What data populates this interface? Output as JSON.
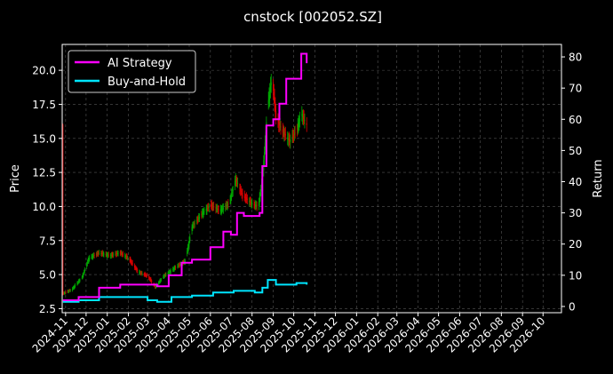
{
  "chart_data": {
    "type": "line",
    "title": "cnstock [002052.SZ]",
    "ylabel_left": "Price",
    "ylabel_right": "Return",
    "grid": true,
    "legend_placement": "top-left",
    "colors": {
      "background": "#000000",
      "text": "#ffffff",
      "grid": "#555555",
      "up_candle": "#00aa00",
      "down_candle": "#dd0000",
      "ai_strategy": "#ff00ff",
      "buy_and_hold": "#00e5ff"
    },
    "x_ticks": [
      "2024-11",
      "2024-12",
      "2025-01",
      "2025-02",
      "2025-03",
      "2025-04",
      "2025-05",
      "2025-06",
      "2025-07",
      "2025-08",
      "2025-09",
      "2025-10",
      "2025-11",
      "2025-12",
      "2026-01",
      "2026-02",
      "2026-03",
      "2026-04",
      "2026-05",
      "2026-06",
      "2026-07",
      "2026-08",
      "2026-09",
      "2026-10"
    ],
    "xlim": [
      "2024-10-27",
      "2026-10-28"
    ],
    "ylim_left": [
      2.2,
      21.9
    ],
    "yticks_left": [
      "2.5",
      "5.0",
      "7.5",
      "10.0",
      "12.5",
      "15.0",
      "17.5",
      "20.0"
    ],
    "ylim_right": [
      -2,
      84
    ],
    "yticks_right": [
      "0",
      "10",
      "20",
      "30",
      "40",
      "50",
      "60",
      "70",
      "80"
    ],
    "price": [
      {
        "x": "2024-10-28",
        "y": 3.6
      },
      {
        "x": "2024-11-10",
        "y": 3.9
      },
      {
        "x": "2024-11-25",
        "y": 4.8
      },
      {
        "x": "2024-12-05",
        "y": 6.2
      },
      {
        "x": "2024-12-20",
        "y": 6.6
      },
      {
        "x": "2025-01-05",
        "y": 6.4
      },
      {
        "x": "2025-01-20",
        "y": 6.6
      },
      {
        "x": "2025-02-01",
        "y": 6.2
      },
      {
        "x": "2025-02-15",
        "y": 5.2
      },
      {
        "x": "2025-03-01",
        "y": 4.9
      },
      {
        "x": "2025-03-12",
        "y": 4.1
      },
      {
        "x": "2025-03-25",
        "y": 4.9
      },
      {
        "x": "2025-04-10",
        "y": 5.5
      },
      {
        "x": "2025-04-25",
        "y": 6.0
      },
      {
        "x": "2025-05-05",
        "y": 8.5
      },
      {
        "x": "2025-05-20",
        "y": 9.5
      },
      {
        "x": "2025-06-01",
        "y": 10.1
      },
      {
        "x": "2025-06-15",
        "y": 9.7
      },
      {
        "x": "2025-06-28",
        "y": 10.2
      },
      {
        "x": "2025-07-08",
        "y": 12.0
      },
      {
        "x": "2025-07-18",
        "y": 10.8
      },
      {
        "x": "2025-08-01",
        "y": 10.2
      },
      {
        "x": "2025-08-10",
        "y": 10.0
      },
      {
        "x": "2025-08-16",
        "y": 12.0
      },
      {
        "x": "2025-08-24",
        "y": 17.5
      },
      {
        "x": "2025-08-30",
        "y": 19.5
      },
      {
        "x": "2025-09-05",
        "y": 16.5
      },
      {
        "x": "2025-09-15",
        "y": 15.5
      },
      {
        "x": "2025-09-25",
        "y": 14.8
      },
      {
        "x": "2025-10-05",
        "y": 15.6
      },
      {
        "x": "2025-10-12",
        "y": 16.8
      },
      {
        "x": "2025-10-20",
        "y": 16.0
      }
    ],
    "series": [
      {
        "name": "AI Strategy",
        "axis": "right",
        "points": [
          {
            "x": "2024-10-28",
            "y": 2
          },
          {
            "x": "2024-11-20",
            "y": 3
          },
          {
            "x": "2024-12-20",
            "y": 6
          },
          {
            "x": "2025-01-20",
            "y": 7
          },
          {
            "x": "2025-03-10",
            "y": 7
          },
          {
            "x": "2025-03-15",
            "y": 6.5
          },
          {
            "x": "2025-04-01",
            "y": 10
          },
          {
            "x": "2025-04-20",
            "y": 14
          },
          {
            "x": "2025-05-05",
            "y": 15
          },
          {
            "x": "2025-06-01",
            "y": 19
          },
          {
            "x": "2025-06-20",
            "y": 24
          },
          {
            "x": "2025-07-01",
            "y": 23
          },
          {
            "x": "2025-07-10",
            "y": 30
          },
          {
            "x": "2025-07-20",
            "y": 29
          },
          {
            "x": "2025-08-05",
            "y": 29
          },
          {
            "x": "2025-08-12",
            "y": 30
          },
          {
            "x": "2025-08-16",
            "y": 45
          },
          {
            "x": "2025-08-22",
            "y": 58
          },
          {
            "x": "2025-09-01",
            "y": 60
          },
          {
            "x": "2025-09-10",
            "y": 65
          },
          {
            "x": "2025-09-20",
            "y": 73
          },
          {
            "x": "2025-10-05",
            "y": 73
          },
          {
            "x": "2025-10-12",
            "y": 81
          },
          {
            "x": "2025-10-20",
            "y": 78
          }
        ]
      },
      {
        "name": "Buy-and-Hold",
        "axis": "right",
        "points": [
          {
            "x": "2024-10-28",
            "y": 1.5
          },
          {
            "x": "2024-11-20",
            "y": 2
          },
          {
            "x": "2024-12-20",
            "y": 3
          },
          {
            "x": "2025-01-20",
            "y": 3
          },
          {
            "x": "2025-03-01",
            "y": 2
          },
          {
            "x": "2025-03-15",
            "y": 1.5
          },
          {
            "x": "2025-04-05",
            "y": 3
          },
          {
            "x": "2025-05-05",
            "y": 3.5
          },
          {
            "x": "2025-06-05",
            "y": 4.5
          },
          {
            "x": "2025-07-05",
            "y": 5
          },
          {
            "x": "2025-08-05",
            "y": 4.5
          },
          {
            "x": "2025-08-16",
            "y": 6
          },
          {
            "x": "2025-08-24",
            "y": 8.5
          },
          {
            "x": "2025-09-05",
            "y": 7
          },
          {
            "x": "2025-10-05",
            "y": 7.5
          },
          {
            "x": "2025-10-20",
            "y": 7
          }
        ]
      }
    ]
  }
}
